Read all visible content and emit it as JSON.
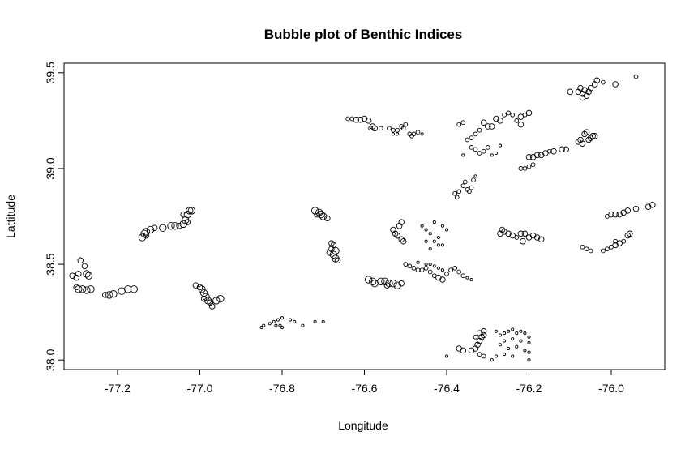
{
  "chart_data": {
    "type": "scatter",
    "title": "Bubble plot of Benthic Indices",
    "xlabel": "Longitude",
    "ylabel": "Lattitude",
    "xlim": [
      -77.33,
      -75.87
    ],
    "ylim": [
      37.95,
      39.55
    ],
    "x_ticks": [
      -77.2,
      -77.0,
      -76.8,
      -76.6,
      -76.4,
      -76.2,
      -76.0
    ],
    "x_tick_labels": [
      "-77.2",
      "-77.0",
      "-76.8",
      "-76.6",
      "-76.4",
      "-76.2",
      "-76.0"
    ],
    "y_ticks": [
      38.0,
      38.5,
      39.0,
      39.5
    ],
    "y_tick_labels": [
      "38.0",
      "38.5",
      "39.0",
      "39.5"
    ],
    "grid": false,
    "legend": "none",
    "size_scale": "1 = smallest, 5 = largest",
    "points": [
      [
        -77.31,
        38.44,
        3
      ],
      [
        -77.3,
        38.43,
        3
      ],
      [
        -77.295,
        38.45,
        3
      ],
      [
        -77.29,
        38.52,
        3
      ],
      [
        -77.28,
        38.49,
        3
      ],
      [
        -77.275,
        38.45,
        4
      ],
      [
        -77.27,
        38.44,
        4
      ],
      [
        -77.3,
        38.38,
        3
      ],
      [
        -77.295,
        38.37,
        4
      ],
      [
        -77.285,
        38.37,
        4
      ],
      [
        -77.275,
        38.365,
        4
      ],
      [
        -77.265,
        38.37,
        4
      ],
      [
        -77.23,
        38.34,
        3
      ],
      [
        -77.22,
        38.34,
        4
      ],
      [
        -77.21,
        38.345,
        4
      ],
      [
        -77.19,
        38.36,
        4
      ],
      [
        -77.175,
        38.37,
        4
      ],
      [
        -77.16,
        38.37,
        4
      ],
      [
        -77.14,
        38.64,
        4
      ],
      [
        -77.135,
        38.66,
        4
      ],
      [
        -77.13,
        38.67,
        4
      ],
      [
        -77.13,
        38.65,
        3
      ],
      [
        -77.12,
        38.68,
        4
      ],
      [
        -77.11,
        38.69,
        3
      ],
      [
        -77.09,
        38.69,
        4
      ],
      [
        -77.07,
        38.7,
        4
      ],
      [
        -77.06,
        38.7,
        4
      ],
      [
        -77.05,
        38.7,
        3
      ],
      [
        -77.04,
        38.71,
        4
      ],
      [
        -77.035,
        38.73,
        4
      ],
      [
        -77.03,
        38.76,
        4
      ],
      [
        -77.025,
        38.78,
        4
      ],
      [
        -77.02,
        38.78,
        4
      ],
      [
        -77.03,
        38.72,
        3
      ],
      [
        -77.04,
        38.76,
        3
      ],
      [
        -77.01,
        38.39,
        3
      ],
      [
        -77.0,
        38.38,
        3
      ],
      [
        -76.995,
        38.37,
        4
      ],
      [
        -76.99,
        38.35,
        4
      ],
      [
        -76.985,
        38.33,
        4
      ],
      [
        -76.98,
        38.31,
        4
      ],
      [
        -76.975,
        38.3,
        3
      ],
      [
        -76.97,
        38.28,
        3
      ],
      [
        -76.96,
        38.31,
        4
      ],
      [
        -76.95,
        38.32,
        4
      ],
      [
        -76.99,
        38.32,
        3
      ],
      [
        -76.85,
        38.17,
        1
      ],
      [
        -76.845,
        38.18,
        1
      ],
      [
        -76.83,
        38.19,
        1
      ],
      [
        -76.82,
        38.2,
        1
      ],
      [
        -76.815,
        38.18,
        1
      ],
      [
        -76.81,
        38.21,
        1
      ],
      [
        -76.8,
        38.22,
        1
      ],
      [
        -76.805,
        38.18,
        1
      ],
      [
        -76.8,
        38.17,
        1
      ],
      [
        -76.78,
        38.21,
        1
      ],
      [
        -76.77,
        38.2,
        1
      ],
      [
        -76.75,
        38.18,
        1
      ],
      [
        -76.72,
        38.2,
        1
      ],
      [
        -76.7,
        38.2,
        1
      ],
      [
        -76.72,
        38.78,
        4
      ],
      [
        -76.71,
        38.77,
        4
      ],
      [
        -76.705,
        38.76,
        4
      ],
      [
        -76.7,
        38.75,
        4
      ],
      [
        -76.69,
        38.74,
        3
      ],
      [
        -76.715,
        38.76,
        3
      ],
      [
        -76.68,
        38.61,
        3
      ],
      [
        -76.675,
        38.6,
        3
      ],
      [
        -76.68,
        38.58,
        3
      ],
      [
        -76.67,
        38.57,
        4
      ],
      [
        -76.675,
        38.55,
        4
      ],
      [
        -76.67,
        38.53,
        4
      ],
      [
        -76.665,
        38.52,
        3
      ],
      [
        -76.685,
        38.56,
        3
      ],
      [
        -76.64,
        39.26,
        2
      ],
      [
        -76.63,
        39.26,
        2
      ],
      [
        -76.62,
        39.255,
        3
      ],
      [
        -76.61,
        39.255,
        3
      ],
      [
        -76.6,
        39.26,
        3
      ],
      [
        -76.59,
        39.25,
        3
      ],
      [
        -76.58,
        39.22,
        3
      ],
      [
        -76.575,
        39.21,
        3
      ],
      [
        -76.56,
        39.21,
        2
      ],
      [
        -76.585,
        39.21,
        2
      ],
      [
        -76.59,
        38.42,
        4
      ],
      [
        -76.58,
        38.41,
        4
      ],
      [
        -76.575,
        38.4,
        4
      ],
      [
        -76.56,
        38.41,
        4
      ],
      [
        -76.55,
        38.41,
        4
      ],
      [
        -76.54,
        38.4,
        4
      ],
      [
        -76.53,
        38.4,
        4
      ],
      [
        -76.52,
        38.39,
        4
      ],
      [
        -76.51,
        38.4,
        3
      ],
      [
        -76.545,
        38.39,
        3
      ],
      [
        -76.53,
        38.68,
        3
      ],
      [
        -76.525,
        38.66,
        3
      ],
      [
        -76.52,
        38.65,
        3
      ],
      [
        -76.51,
        38.63,
        3
      ],
      [
        -76.505,
        38.62,
        3
      ],
      [
        -76.515,
        38.7,
        3
      ],
      [
        -76.51,
        38.72,
        3
      ],
      [
        -76.54,
        39.21,
        2
      ],
      [
        -76.53,
        39.2,
        2
      ],
      [
        -76.52,
        39.2,
        2
      ],
      [
        -76.51,
        39.22,
        2
      ],
      [
        -76.5,
        39.23,
        2
      ],
      [
        -76.505,
        39.21,
        2
      ],
      [
        -76.49,
        39.18,
        2
      ],
      [
        -76.48,
        39.18,
        2
      ],
      [
        -76.47,
        39.19,
        2
      ],
      [
        -76.485,
        39.17,
        2
      ],
      [
        -76.46,
        39.18,
        1
      ],
      [
        -76.52,
        39.18,
        1
      ],
      [
        -76.53,
        39.18,
        1
      ],
      [
        -76.5,
        38.5,
        2
      ],
      [
        -76.49,
        38.49,
        2
      ],
      [
        -76.48,
        38.48,
        2
      ],
      [
        -76.47,
        38.47,
        2
      ],
      [
        -76.46,
        38.47,
        2
      ],
      [
        -76.45,
        38.48,
        2
      ],
      [
        -76.44,
        38.46,
        2
      ],
      [
        -76.43,
        38.44,
        2
      ],
      [
        -76.42,
        38.43,
        3
      ],
      [
        -76.41,
        38.42,
        3
      ],
      [
        -76.4,
        38.45,
        2
      ],
      [
        -76.39,
        38.47,
        2
      ],
      [
        -76.38,
        38.48,
        2
      ],
      [
        -76.37,
        38.46,
        2
      ],
      [
        -76.36,
        38.44,
        2
      ],
      [
        -76.35,
        38.43,
        1
      ],
      [
        -76.34,
        38.42,
        1
      ],
      [
        -76.47,
        38.51,
        1
      ],
      [
        -76.45,
        38.5,
        1
      ],
      [
        -76.44,
        38.5,
        1
      ],
      [
        -76.43,
        38.49,
        1
      ],
      [
        -76.42,
        38.48,
        1
      ],
      [
        -76.41,
        38.47,
        1
      ],
      [
        -76.46,
        38.7,
        1
      ],
      [
        -76.45,
        38.68,
        1
      ],
      [
        -76.44,
        38.66,
        1
      ],
      [
        -76.43,
        38.62,
        1
      ],
      [
        -76.42,
        38.64,
        1
      ],
      [
        -76.41,
        38.7,
        1
      ],
      [
        -76.4,
        38.68,
        1
      ],
      [
        -76.42,
        38.6,
        1
      ],
      [
        -76.43,
        38.72,
        1
      ],
      [
        -76.44,
        38.58,
        1
      ],
      [
        -76.41,
        38.6,
        1
      ],
      [
        -76.45,
        38.62,
        1
      ],
      [
        -76.38,
        38.87,
        2
      ],
      [
        -76.375,
        38.85,
        2
      ],
      [
        -76.37,
        38.88,
        2
      ],
      [
        -76.36,
        38.91,
        2
      ],
      [
        -76.355,
        38.93,
        2
      ],
      [
        -76.35,
        38.89,
        2
      ],
      [
        -76.34,
        38.9,
        2
      ],
      [
        -76.33,
        38.96,
        1
      ],
      [
        -76.335,
        38.94,
        2
      ],
      [
        -76.345,
        38.88,
        2
      ],
      [
        -76.37,
        39.23,
        2
      ],
      [
        -76.36,
        39.24,
        2
      ],
      [
        -76.34,
        39.11,
        2
      ],
      [
        -76.33,
        39.1,
        2
      ],
      [
        -76.32,
        39.08,
        2
      ],
      [
        -76.31,
        39.09,
        2
      ],
      [
        -76.3,
        39.11,
        2
      ],
      [
        -76.29,
        39.07,
        1
      ],
      [
        -76.28,
        39.08,
        1
      ],
      [
        -76.27,
        39.12,
        1
      ],
      [
        -76.35,
        39.15,
        2
      ],
      [
        -76.34,
        39.16,
        2
      ],
      [
        -76.33,
        39.18,
        2
      ],
      [
        -76.32,
        39.2,
        2
      ],
      [
        -76.31,
        39.24,
        3
      ],
      [
        -76.3,
        39.22,
        3
      ],
      [
        -76.29,
        39.22,
        3
      ],
      [
        -76.28,
        39.26,
        3
      ],
      [
        -76.27,
        39.25,
        3
      ],
      [
        -76.36,
        39.07,
        1
      ],
      [
        -76.26,
        39.28,
        2
      ],
      [
        -76.25,
        39.29,
        2
      ],
      [
        -76.24,
        39.28,
        2
      ],
      [
        -76.22,
        39.27,
        3
      ],
      [
        -76.21,
        39.28,
        2
      ],
      [
        -76.2,
        39.29,
        3
      ],
      [
        -76.23,
        39.25,
        2
      ],
      [
        -76.22,
        39.23,
        3
      ],
      [
        -76.27,
        38.66,
        3
      ],
      [
        -76.265,
        38.68,
        3
      ],
      [
        -76.26,
        38.67,
        3
      ],
      [
        -76.25,
        38.66,
        3
      ],
      [
        -76.24,
        38.65,
        3
      ],
      [
        -76.22,
        38.66,
        3
      ],
      [
        -76.21,
        38.66,
        3
      ],
      [
        -76.2,
        38.64,
        3
      ],
      [
        -76.19,
        38.65,
        3
      ],
      [
        -76.18,
        38.64,
        3
      ],
      [
        -76.17,
        38.63,
        3
      ],
      [
        -76.23,
        38.64,
        2
      ],
      [
        -76.215,
        38.62,
        3
      ],
      [
        -76.22,
        39.0,
        2
      ],
      [
        -76.21,
        39.0,
        2
      ],
      [
        -76.2,
        39.01,
        2
      ],
      [
        -76.19,
        39.02,
        2
      ],
      [
        -76.2,
        39.06,
        3
      ],
      [
        -76.19,
        39.06,
        3
      ],
      [
        -76.18,
        39.07,
        3
      ],
      [
        -76.17,
        39.07,
        3
      ],
      [
        -76.16,
        39.08,
        3
      ],
      [
        -76.14,
        39.09,
        3
      ],
      [
        -76.12,
        39.1,
        3
      ],
      [
        -76.11,
        39.1,
        3
      ],
      [
        -76.15,
        39.09,
        2
      ],
      [
        -76.32,
        38.14,
        3
      ],
      [
        -76.315,
        38.12,
        3
      ],
      [
        -76.31,
        38.13,
        3
      ],
      [
        -76.32,
        38.1,
        3
      ],
      [
        -76.325,
        38.08,
        3
      ],
      [
        -76.33,
        38.12,
        2
      ],
      [
        -76.31,
        38.15,
        3
      ],
      [
        -76.33,
        38.06,
        3
      ],
      [
        -76.34,
        38.05,
        3
      ],
      [
        -76.36,
        38.05,
        3
      ],
      [
        -76.37,
        38.06,
        3
      ],
      [
        -76.31,
        38.02,
        2
      ],
      [
        -76.32,
        38.03,
        2
      ],
      [
        -76.4,
        38.02,
        1
      ],
      [
        -76.28,
        38.15,
        1
      ],
      [
        -76.27,
        38.13,
        1
      ],
      [
        -76.26,
        38.14,
        1
      ],
      [
        -76.25,
        38.15,
        1
      ],
      [
        -76.24,
        38.16,
        1
      ],
      [
        -76.23,
        38.14,
        1
      ],
      [
        -76.22,
        38.15,
        1
      ],
      [
        -76.21,
        38.14,
        1
      ],
      [
        -76.2,
        38.12,
        1
      ],
      [
        -76.2,
        38.09,
        1
      ],
      [
        -76.22,
        38.1,
        1
      ],
      [
        -76.24,
        38.11,
        1
      ],
      [
        -76.26,
        38.1,
        1
      ],
      [
        -76.27,
        38.08,
        1
      ],
      [
        -76.25,
        38.06,
        1
      ],
      [
        -76.23,
        38.07,
        1
      ],
      [
        -76.21,
        38.05,
        1
      ],
      [
        -76.2,
        38.04,
        1
      ],
      [
        -76.24,
        38.02,
        1
      ],
      [
        -76.26,
        38.03,
        1
      ],
      [
        -76.28,
        38.02,
        1
      ],
      [
        -76.2,
        38.0,
        1
      ],
      [
        -76.29,
        38.0,
        1
      ],
      [
        -76.08,
        39.4,
        3
      ],
      [
        -76.075,
        39.42,
        3
      ],
      [
        -76.07,
        39.39,
        3
      ],
      [
        -76.065,
        39.41,
        3
      ],
      [
        -76.06,
        39.38,
        3
      ],
      [
        -76.055,
        39.4,
        3
      ],
      [
        -76.05,
        39.42,
        3
      ],
      [
        -76.04,
        39.44,
        3
      ],
      [
        -76.035,
        39.46,
        3
      ],
      [
        -76.02,
        39.45,
        2
      ],
      [
        -75.99,
        39.44,
        3
      ],
      [
        -75.94,
        39.48,
        2
      ],
      [
        -76.1,
        39.4,
        3
      ],
      [
        -76.07,
        39.37,
        3
      ],
      [
        -76.08,
        39.14,
        3
      ],
      [
        -76.075,
        39.15,
        3
      ],
      [
        -76.07,
        39.13,
        3
      ],
      [
        -76.065,
        39.18,
        3
      ],
      [
        -76.06,
        39.19,
        3
      ],
      [
        -76.055,
        39.15,
        3
      ],
      [
        -76.05,
        39.16,
        3
      ],
      [
        -76.045,
        39.17,
        3
      ],
      [
        -76.04,
        39.17,
        3
      ],
      [
        -76.07,
        38.59,
        2
      ],
      [
        -76.06,
        38.58,
        2
      ],
      [
        -76.05,
        38.57,
        2
      ],
      [
        -76.02,
        38.57,
        2
      ],
      [
        -76.01,
        38.58,
        2
      ],
      [
        -76.0,
        38.59,
        2
      ],
      [
        -75.99,
        38.6,
        3
      ],
      [
        -75.98,
        38.61,
        3
      ],
      [
        -75.97,
        38.62,
        2
      ],
      [
        -75.96,
        38.65,
        3
      ],
      [
        -75.955,
        38.66,
        3
      ],
      [
        -75.99,
        38.62,
        2
      ],
      [
        -76.01,
        38.75,
        2
      ],
      [
        -76.0,
        38.76,
        3
      ],
      [
        -75.99,
        38.76,
        3
      ],
      [
        -75.98,
        38.76,
        3
      ],
      [
        -75.97,
        38.77,
        3
      ],
      [
        -75.96,
        38.78,
        3
      ],
      [
        -75.94,
        38.79,
        3
      ],
      [
        -75.91,
        38.8,
        3
      ],
      [
        -75.9,
        38.81,
        3
      ]
    ]
  }
}
